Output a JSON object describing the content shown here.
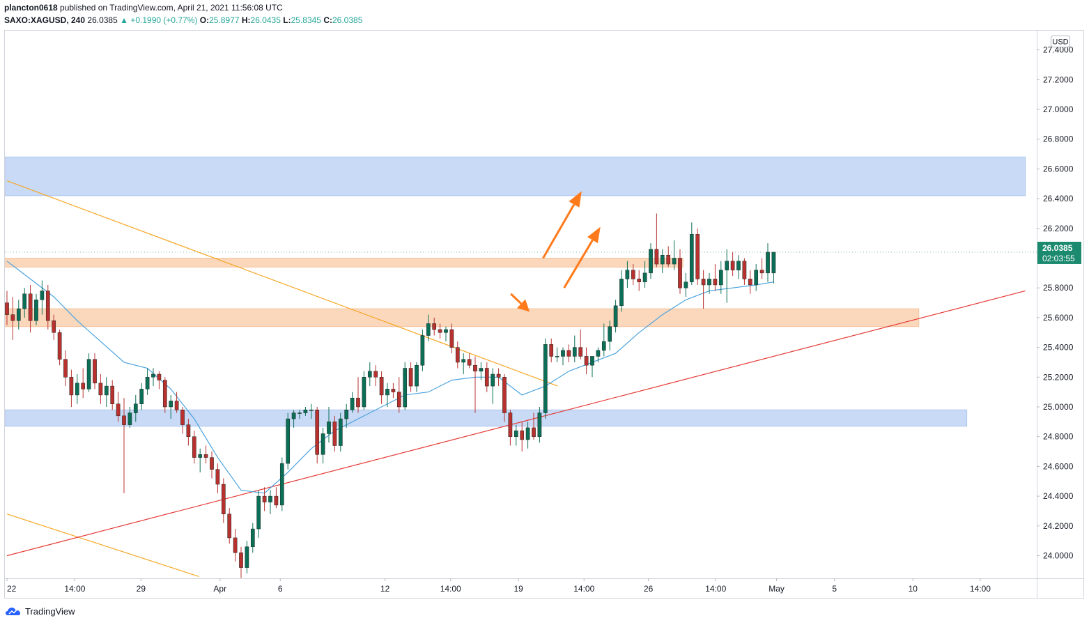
{
  "header": {
    "user": "plancton0618",
    "published": "published on TradingView.com, April 21, 2021 11:56:08 UTC",
    "symbol": "SAXO:XAGUSD, 240",
    "last": "26.0385",
    "arrow": "▲",
    "change": "+0.1990 (+0.77%)",
    "o_label": "O:",
    "o_value": "25.8977",
    "h_label": "H:",
    "h_value": "26.0435",
    "l_label": "L:",
    "l_value": "25.8345",
    "c_label": "C:",
    "c_value": "26.0385"
  },
  "axis": {
    "currency": "USD",
    "price_label": "26.0385",
    "countdown": "02:03:55"
  },
  "footer": {
    "brand": "TradingView"
  },
  "colors": {
    "up": "#26a69a",
    "down": "#ef5350",
    "candle_up": "#0b6e56",
    "candle_down": "#b8312f",
    "ma": "#4aa3df",
    "zone_blue": "#c9daf6",
    "zone_orange": "#fbd8bc",
    "trend_orange": "#f5a623",
    "trend_red": "#e53935",
    "arrow": "#ff7a1a",
    "badge": "#1c8a6f"
  },
  "chart_data": {
    "type": "candlestick",
    "title": "SAXO:XAGUSD, 240",
    "ylabel": "USD",
    "ylim": [
      23.85,
      27.6
    ],
    "x_range": [
      0,
      174
    ],
    "y_ticks": [
      24.0,
      24.2,
      24.4,
      24.6,
      24.8,
      25.0,
      25.2,
      25.4,
      25.6,
      25.8,
      26.0,
      26.2,
      26.4,
      26.6,
      26.8,
      27.0,
      27.2,
      27.4
    ],
    "y_tick_labels": [
      "24.0000",
      "24.2000",
      "24.4000",
      "24.6000",
      "24.8000",
      "25.0000",
      "25.2000",
      "25.4000",
      "25.6000",
      "25.8000",
      "26.0000",
      "26.2000",
      "26.4000",
      "26.6000",
      "26.8000",
      "27.0000",
      "27.2000",
      "27.4000"
    ],
    "x_ticks": [
      {
        "i": 0,
        "label": "22"
      },
      {
        "i": 11.6,
        "label": "14:00"
      },
      {
        "i": 22.9,
        "label": "29"
      },
      {
        "i": 36.4,
        "label": "Apr"
      },
      {
        "i": 46.7,
        "label": "6"
      },
      {
        "i": 64.6,
        "label": "12"
      },
      {
        "i": 75.8,
        "label": "14:00"
      },
      {
        "i": 87.4,
        "label": "19"
      },
      {
        "i": 98.6,
        "label": "14:00"
      },
      {
        "i": 109.6,
        "label": "26"
      },
      {
        "i": 121.1,
        "label": "14:00"
      },
      {
        "i": 131.5,
        "label": "May"
      },
      {
        "i": 141.4,
        "label": "5"
      },
      {
        "i": 154.8,
        "label": "10"
      },
      {
        "i": 166.3,
        "label": "14:00"
      }
    ],
    "candles": [
      [
        25.7,
        25.78,
        25.55,
        25.62
      ],
      [
        25.62,
        25.74,
        25.45,
        25.58
      ],
      [
        25.58,
        25.72,
        25.52,
        25.66
      ],
      [
        25.66,
        25.8,
        25.6,
        25.76
      ],
      [
        25.76,
        25.82,
        25.5,
        25.58
      ],
      [
        25.58,
        25.76,
        25.55,
        25.72
      ],
      [
        25.72,
        25.85,
        25.62,
        25.78
      ],
      [
        25.78,
        25.82,
        25.52,
        25.58
      ],
      [
        25.58,
        25.62,
        25.45,
        25.5
      ],
      [
        25.5,
        25.52,
        25.28,
        25.32
      ],
      [
        25.32,
        25.38,
        25.14,
        25.2
      ],
      [
        25.2,
        25.25,
        25.0,
        25.08
      ],
      [
        25.08,
        25.22,
        25.02,
        25.16
      ],
      [
        25.16,
        25.26,
        25.06,
        25.12
      ],
      [
        25.12,
        25.36,
        25.1,
        25.32
      ],
      [
        25.32,
        25.36,
        25.12,
        25.16
      ],
      [
        25.16,
        25.22,
        25.02,
        25.08
      ],
      [
        25.08,
        25.2,
        25.0,
        25.14
      ],
      [
        25.14,
        25.18,
        24.98,
        25.02
      ],
      [
        25.02,
        25.1,
        24.9,
        24.94
      ],
      [
        24.94,
        25.06,
        24.42,
        24.88
      ],
      [
        24.88,
        25.0,
        24.86,
        24.96
      ],
      [
        24.96,
        25.08,
        24.9,
        25.02
      ],
      [
        25.02,
        25.16,
        24.98,
        25.12
      ],
      [
        25.12,
        25.26,
        25.08,
        25.2
      ],
      [
        25.2,
        25.26,
        25.14,
        25.22
      ],
      [
        25.22,
        25.24,
        25.12,
        25.18
      ],
      [
        25.18,
        25.2,
        24.96,
        25.0
      ],
      [
        25.0,
        25.08,
        24.92,
        25.04
      ],
      [
        25.04,
        25.1,
        24.96,
        24.98
      ],
      [
        24.98,
        25.0,
        24.82,
        24.88
      ],
      [
        24.88,
        24.92,
        24.74,
        24.8
      ],
      [
        24.8,
        24.84,
        24.62,
        24.66
      ],
      [
        24.66,
        24.72,
        24.56,
        24.68
      ],
      [
        24.68,
        24.74,
        24.62,
        24.66
      ],
      [
        24.66,
        24.7,
        24.52,
        24.58
      ],
      [
        24.58,
        24.62,
        24.42,
        24.48
      ],
      [
        24.48,
        24.52,
        24.22,
        24.28
      ],
      [
        24.28,
        24.32,
        24.08,
        24.12
      ],
      [
        24.12,
        24.18,
        23.96,
        24.02
      ],
      [
        24.02,
        24.06,
        23.85,
        23.92
      ],
      [
        23.92,
        24.1,
        23.88,
        24.06
      ],
      [
        24.06,
        24.22,
        24.02,
        24.18
      ],
      [
        24.18,
        24.44,
        24.12,
        24.4
      ],
      [
        24.4,
        24.46,
        24.3,
        24.36
      ],
      [
        24.36,
        24.44,
        24.28,
        24.4
      ],
      [
        24.4,
        24.46,
        24.32,
        24.34
      ],
      [
        24.34,
        24.66,
        24.3,
        24.62
      ],
      [
        24.62,
        24.96,
        24.58,
        24.92
      ],
      [
        24.92,
        24.98,
        24.86,
        24.96
      ],
      [
        24.96,
        24.98,
        24.92,
        24.96
      ],
      [
        24.96,
        25.0,
        24.94,
        24.98
      ],
      [
        24.98,
        25.02,
        24.92,
        24.98
      ],
      [
        24.98,
        25.0,
        24.62,
        24.68
      ],
      [
        24.68,
        24.86,
        24.62,
        24.82
      ],
      [
        24.82,
        25.0,
        24.76,
        24.9
      ],
      [
        24.9,
        24.94,
        24.7,
        24.74
      ],
      [
        24.74,
        24.96,
        24.7,
        24.92
      ],
      [
        24.92,
        25.02,
        24.86,
        24.98
      ],
      [
        24.98,
        25.1,
        24.96,
        25.06
      ],
      [
        25.06,
        25.2,
        24.96,
        25.0
      ],
      [
        25.0,
        25.24,
        24.98,
        25.2
      ],
      [
        25.2,
        25.3,
        25.14,
        25.24
      ],
      [
        25.24,
        25.28,
        25.14,
        25.2
      ],
      [
        25.2,
        25.24,
        25.02,
        25.08
      ],
      [
        25.08,
        25.16,
        25.0,
        25.12
      ],
      [
        25.12,
        25.16,
        25.06,
        25.1
      ],
      [
        25.1,
        25.2,
        24.96,
        25.0
      ],
      [
        25.0,
        25.3,
        24.98,
        25.26
      ],
      [
        25.26,
        25.3,
        25.1,
        25.14
      ],
      [
        25.14,
        25.3,
        25.1,
        25.28
      ],
      [
        25.28,
        25.52,
        25.24,
        25.48
      ],
      [
        25.48,
        25.62,
        25.44,
        25.56
      ],
      [
        25.56,
        25.6,
        25.48,
        25.52
      ],
      [
        25.52,
        25.56,
        25.46,
        25.5
      ],
      [
        25.5,
        25.54,
        25.44,
        25.52
      ],
      [
        25.52,
        25.56,
        25.36,
        25.4
      ],
      [
        25.4,
        25.44,
        25.26,
        25.3
      ],
      [
        25.3,
        25.36,
        25.22,
        25.32
      ],
      [
        25.32,
        25.36,
        25.26,
        25.28
      ],
      [
        25.28,
        25.34,
        24.96,
        25.24
      ],
      [
        25.24,
        25.3,
        25.18,
        25.26
      ],
      [
        25.26,
        25.3,
        25.1,
        25.14
      ],
      [
        25.14,
        25.26,
        25.02,
        25.22
      ],
      [
        25.22,
        25.26,
        25.14,
        25.2
      ],
      [
        25.2,
        25.22,
        24.9,
        24.96
      ],
      [
        24.96,
        24.98,
        24.74,
        24.8
      ],
      [
        24.8,
        24.88,
        24.74,
        24.84
      ],
      [
        24.84,
        24.9,
        24.7,
        24.78
      ],
      [
        24.78,
        24.9,
        24.72,
        24.86
      ],
      [
        24.86,
        24.96,
        24.78,
        24.8
      ],
      [
        24.8,
        25.0,
        24.76,
        24.96
      ],
      [
        24.96,
        25.46,
        24.92,
        25.42
      ],
      [
        25.42,
        25.46,
        25.3,
        25.34
      ],
      [
        25.34,
        25.4,
        25.3,
        25.34
      ],
      [
        25.34,
        25.4,
        25.28,
        25.38
      ],
      [
        25.38,
        25.42,
        25.3,
        25.34
      ],
      [
        25.34,
        25.48,
        25.3,
        25.4
      ],
      [
        25.4,
        25.52,
        25.32,
        25.34
      ],
      [
        25.34,
        25.4,
        25.22,
        25.28
      ],
      [
        25.28,
        25.34,
        25.2,
        25.34
      ],
      [
        25.34,
        25.4,
        25.3,
        25.38
      ],
      [
        25.38,
        25.56,
        25.34,
        25.44
      ],
      [
        25.44,
        25.58,
        25.38,
        25.54
      ],
      [
        25.54,
        25.72,
        25.5,
        25.68
      ],
      [
        25.68,
        25.92,
        25.64,
        25.86
      ],
      [
        25.86,
        25.98,
        25.8,
        25.92
      ],
      [
        25.92,
        25.96,
        25.82,
        25.86
      ],
      [
        25.86,
        25.92,
        25.78,
        25.84
      ],
      [
        25.84,
        25.98,
        25.8,
        25.9
      ],
      [
        25.9,
        26.1,
        25.86,
        26.06
      ],
      [
        26.06,
        26.3,
        25.94,
        25.96
      ],
      [
        25.96,
        26.06,
        25.9,
        26.02
      ],
      [
        26.02,
        26.08,
        25.94,
        25.96
      ],
      [
        25.96,
        26.12,
        25.92,
        26.0
      ],
      [
        26.0,
        26.06,
        25.76,
        25.8
      ],
      [
        25.8,
        25.9,
        25.74,
        25.84
      ],
      [
        25.84,
        26.24,
        25.82,
        26.16
      ],
      [
        26.16,
        26.2,
        25.82,
        25.86
      ],
      [
        25.86,
        25.92,
        25.66,
        25.82
      ],
      [
        25.82,
        25.9,
        25.76,
        25.86
      ],
      [
        25.86,
        25.96,
        25.78,
        25.82
      ],
      [
        25.82,
        25.98,
        25.76,
        25.92
      ],
      [
        25.92,
        26.06,
        25.7,
        25.98
      ],
      [
        25.98,
        26.04,
        25.88,
        25.92
      ],
      [
        25.92,
        26.02,
        25.86,
        25.98
      ],
      [
        25.98,
        26.0,
        25.82,
        25.86
      ],
      [
        25.86,
        25.92,
        25.76,
        25.82
      ],
      [
        25.82,
        25.96,
        25.78,
        25.92
      ],
      [
        25.92,
        26.0,
        25.86,
        25.9
      ],
      [
        25.9,
        26.1,
        25.84,
        26.04
      ],
      [
        25.9,
        26.04,
        25.83,
        26.04
      ]
    ],
    "ma": [
      [
        0,
        25.98
      ],
      [
        4,
        25.86
      ],
      [
        8,
        25.74
      ],
      [
        12,
        25.58
      ],
      [
        16,
        25.44
      ],
      [
        20,
        25.3
      ],
      [
        24,
        25.26
      ],
      [
        28,
        25.12
      ],
      [
        32,
        24.92
      ],
      [
        36,
        24.66
      ],
      [
        40,
        24.44
      ],
      [
        44,
        24.42
      ],
      [
        48,
        24.56
      ],
      [
        52,
        24.72
      ],
      [
        56,
        24.84
      ],
      [
        60,
        24.92
      ],
      [
        64,
        25.0
      ],
      [
        68,
        25.08
      ],
      [
        72,
        25.1
      ],
      [
        76,
        25.18
      ],
      [
        80,
        25.2
      ],
      [
        84,
        25.2
      ],
      [
        88,
        25.08
      ],
      [
        92,
        25.14
      ],
      [
        96,
        25.24
      ],
      [
        100,
        25.3
      ],
      [
        104,
        25.36
      ],
      [
        108,
        25.5
      ],
      [
        112,
        25.62
      ],
      [
        116,
        25.72
      ],
      [
        120,
        25.78
      ],
      [
        124,
        25.8
      ],
      [
        128,
        25.82
      ],
      [
        131,
        25.84
      ]
    ],
    "zones": [
      {
        "from": 26.42,
        "to": 26.68,
        "end_i": 174,
        "color": "blue"
      },
      {
        "from": 25.94,
        "to": 26.0,
        "end_i": 115.5,
        "color": "orange"
      },
      {
        "from": 25.54,
        "to": 25.66,
        "end_i": 155.8,
        "color": "orange"
      },
      {
        "from": 24.87,
        "to": 24.98,
        "end_i": 164.0,
        "color": "blue"
      }
    ],
    "trendlines": [
      {
        "p1": [
          0,
          26.52
        ],
        "p2": [
          94.1,
          25.14
        ],
        "color": "orange"
      },
      {
        "p1": [
          0,
          24.28
        ],
        "p2": [
          32.8,
          23.86
        ],
        "color": "orange"
      },
      {
        "p1": [
          0,
          24.0
        ],
        "p2": [
          174,
          25.78
        ],
        "color": "red"
      }
    ],
    "arrows": [
      {
        "from": [
          91.6,
          26.0
        ],
        "to": [
          98.2,
          26.45
        ]
      },
      {
        "from": [
          95.2,
          25.8
        ],
        "to": [
          101.4,
          26.21
        ]
      },
      {
        "from": [
          86.1,
          25.76
        ],
        "to": [
          89.3,
          25.64
        ]
      }
    ]
  }
}
